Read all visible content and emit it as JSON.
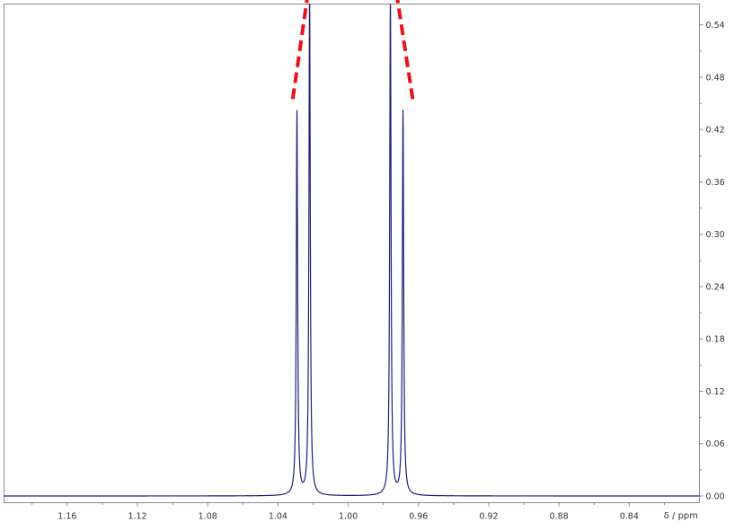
{
  "chart_data": {
    "type": "line",
    "title": "",
    "xlabel": "δ / ppm",
    "ylabel": "",
    "xlim": [
      1.196,
      0.8
    ],
    "ylim": [
      0,
      0.57
    ],
    "x_reversed": true,
    "y_axis_side": "right",
    "grid": false,
    "x_ticks": [
      1.16,
      1.12,
      1.08,
      1.04,
      1.0,
      0.96,
      0.92,
      0.88,
      0.84
    ],
    "x_tick_labels": [
      "1.16",
      "1.12",
      "1.08",
      "1.04",
      "1.00",
      "0.96",
      "0.92",
      "0.88",
      "0.84"
    ],
    "y_ticks": [
      0.0,
      0.06,
      0.12,
      0.18,
      0.24,
      0.3,
      0.36,
      0.42,
      0.48,
      0.54
    ],
    "y_tick_labels": [
      "0.00",
      "0.06",
      "0.12",
      "0.18",
      "0.24",
      "0.30",
      "0.36",
      "0.42",
      "0.48",
      "0.54"
    ],
    "series": [
      {
        "color": "#1f1f7a",
        "peaks": [
          {
            "center": 1.0292,
            "height": 0.44,
            "hwhm": 0.00045
          },
          {
            "center": 1.022,
            "height": 0.575,
            "hwhm": 0.00045
          },
          {
            "center": 0.976,
            "height": 0.575,
            "hwhm": 0.00045
          },
          {
            "center": 0.9688,
            "height": 0.44,
            "hwhm": 0.00045
          }
        ]
      }
    ],
    "annotations": [
      {
        "type": "dashed-line",
        "color": "#e8141b",
        "from": [
          1.0316,
          0.455
        ],
        "to": [
          1.0234,
          0.57
        ]
      },
      {
        "type": "dashed-line",
        "color": "#e8141b",
        "from": [
          0.9633,
          0.455
        ],
        "to": [
          0.972,
          0.57
        ]
      }
    ]
  }
}
